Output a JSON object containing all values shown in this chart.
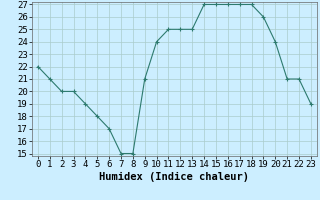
{
  "x": [
    0,
    1,
    2,
    3,
    4,
    5,
    6,
    7,
    8,
    9,
    10,
    11,
    12,
    13,
    14,
    15,
    16,
    17,
    18,
    19,
    20,
    21,
    22,
    23
  ],
  "y": [
    22,
    21,
    20,
    20,
    19,
    18,
    17,
    15,
    15,
    21,
    24,
    25,
    25,
    25,
    27,
    27,
    27,
    27,
    27,
    26,
    24,
    21,
    21,
    19
  ],
  "xlabel": "Humidex (Indice chaleur)",
  "ylim": [
    15,
    27
  ],
  "xlim": [
    -0.5,
    23.5
  ],
  "yticks": [
    15,
    16,
    17,
    18,
    19,
    20,
    21,
    22,
    23,
    24,
    25,
    26,
    27
  ],
  "xticks": [
    0,
    1,
    2,
    3,
    4,
    5,
    6,
    7,
    8,
    9,
    10,
    11,
    12,
    13,
    14,
    15,
    16,
    17,
    18,
    19,
    20,
    21,
    22,
    23
  ],
  "line_color": "#2d7a6e",
  "marker": "+",
  "bg_color": "#cceeff",
  "grid_color": "#aacccc",
  "tick_fontsize": 6.5,
  "label_fontsize": 7.5
}
